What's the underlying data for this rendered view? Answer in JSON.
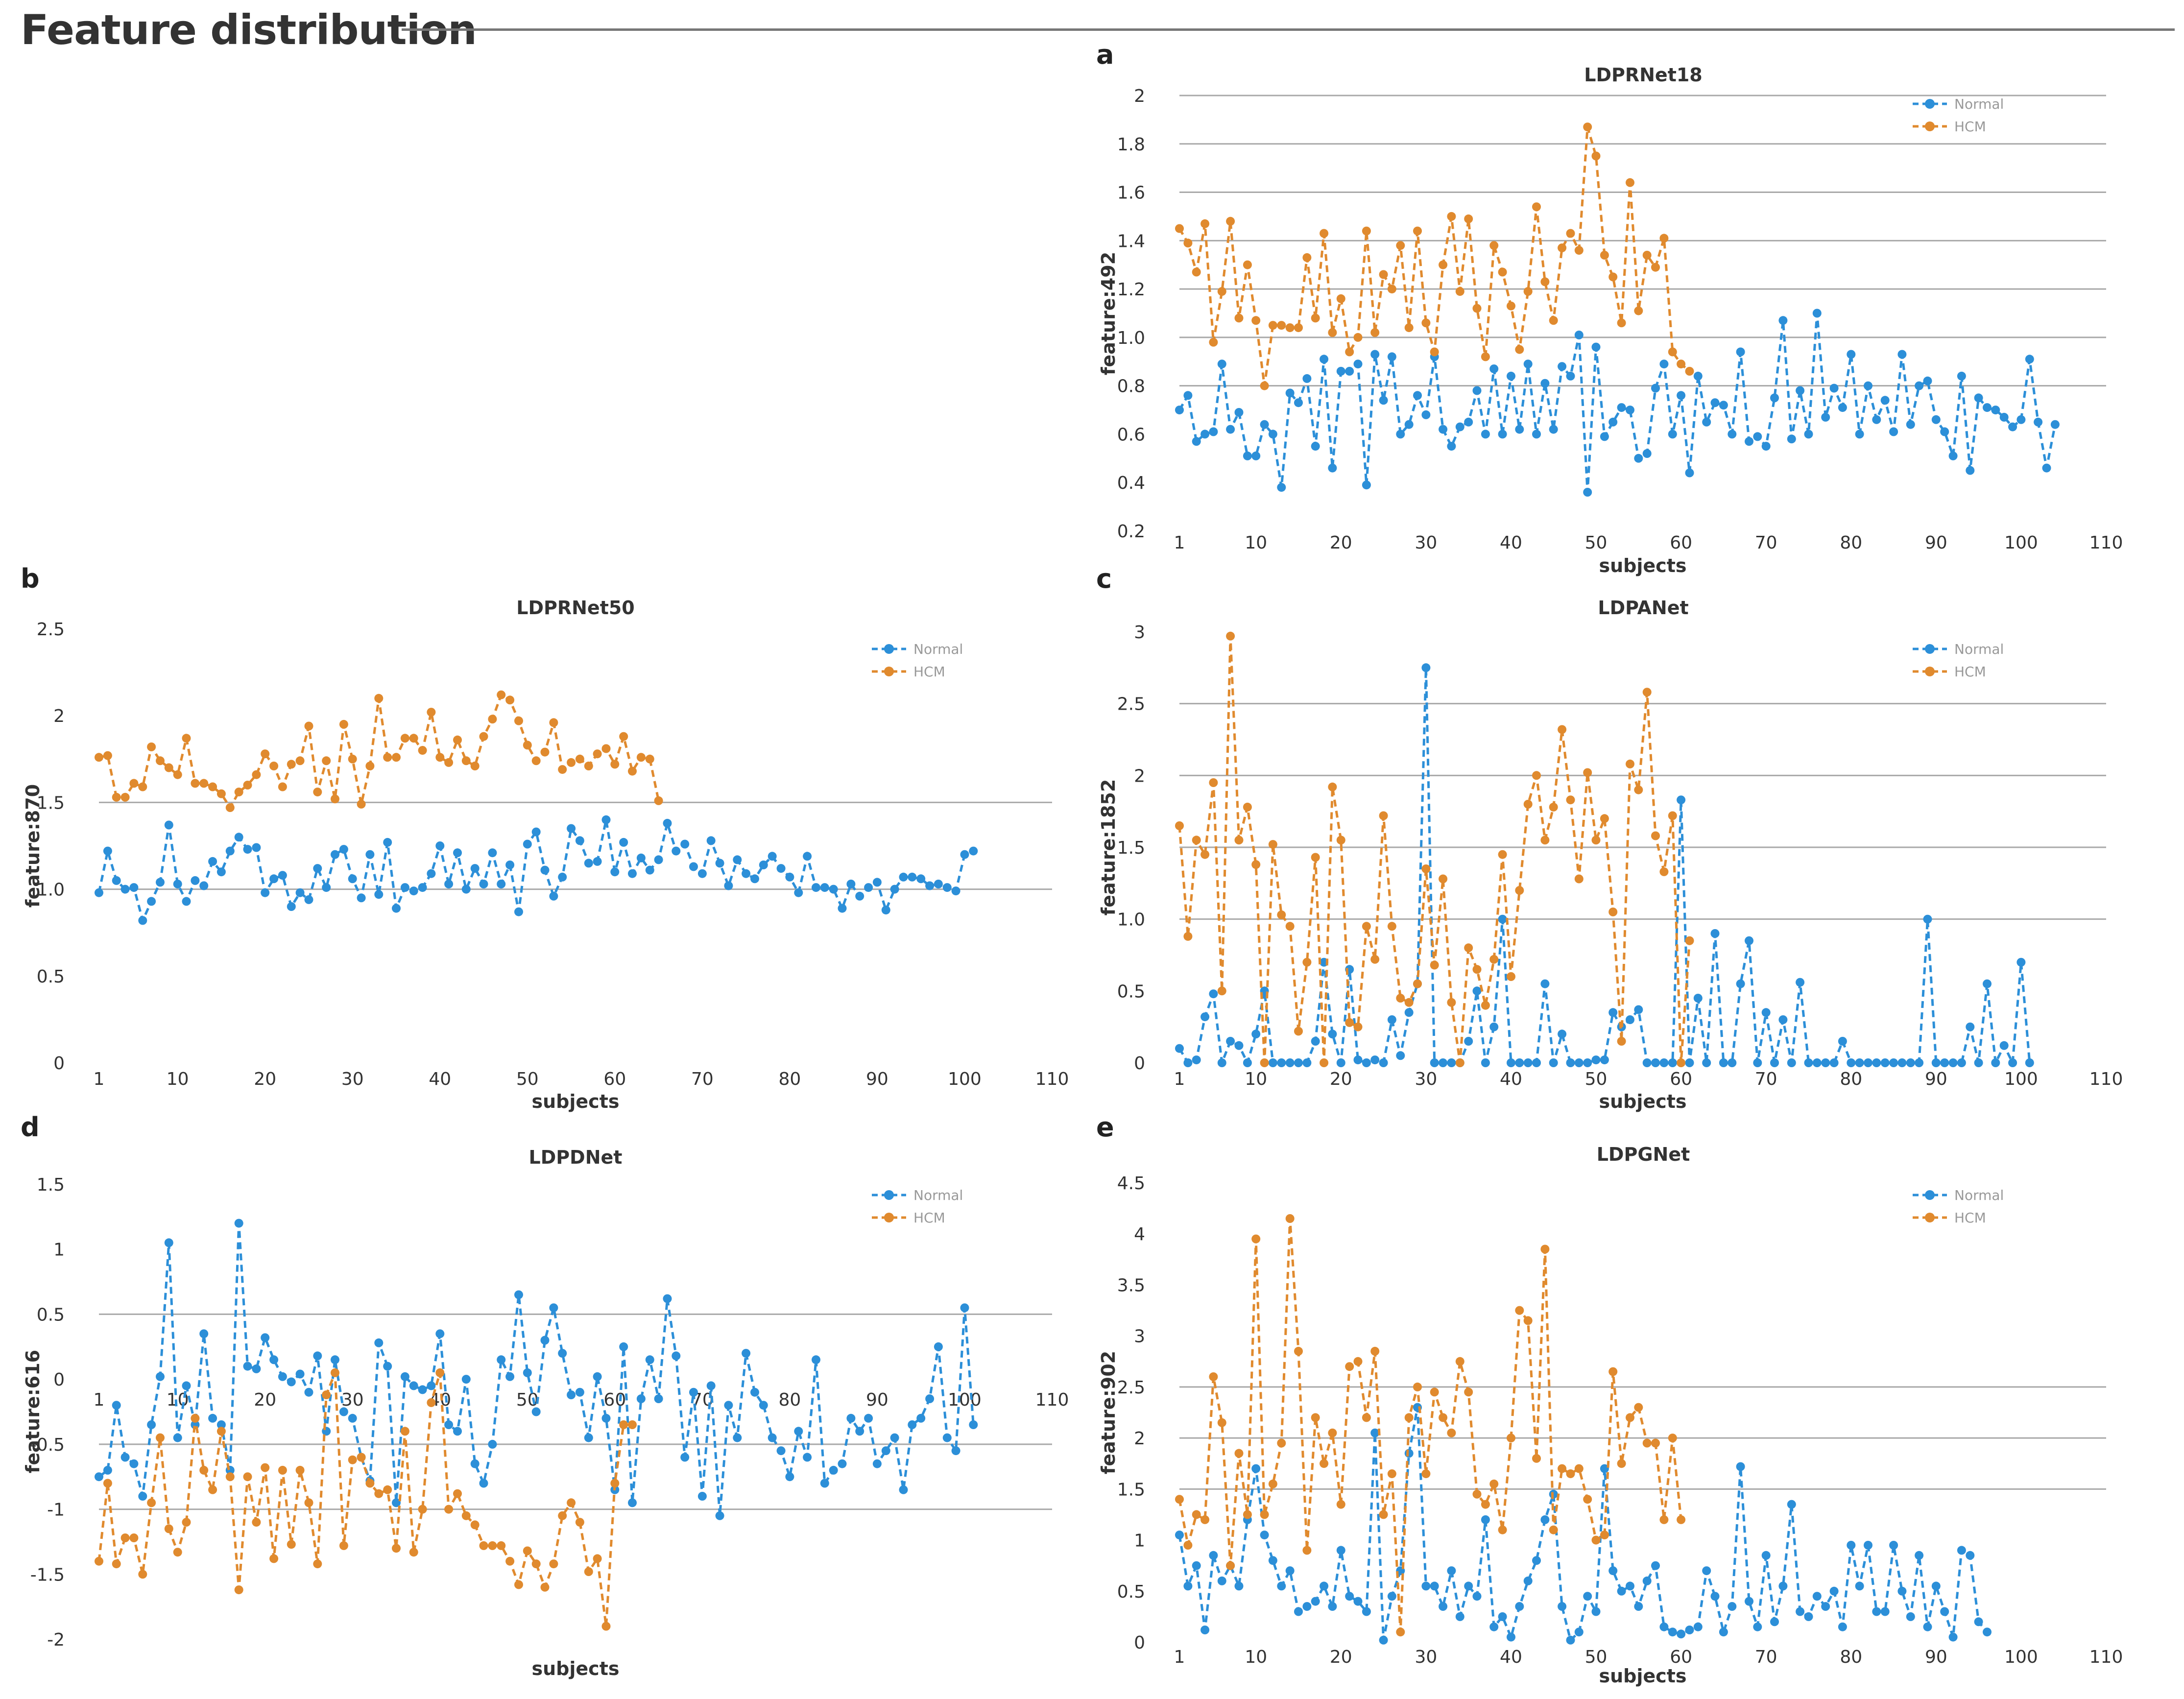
{
  "page": {
    "title": "Feature distribution"
  },
  "chart_data": [
    {
      "panel": "a",
      "type": "line",
      "title": "LDPRNet18",
      "xlabel": "subjects",
      "ylabel": "feature:492",
      "xticks": [
        "1",
        "10",
        "20",
        "30",
        "40",
        "50",
        "60",
        "70",
        "80",
        "90",
        "100",
        "110"
      ],
      "xlim": [
        1,
        110
      ],
      "yticks": [
        "0.2",
        "0.4",
        "0.6",
        "0.8",
        "1.0",
        "1.2",
        "1.4",
        "1.6",
        "1.8",
        "2"
      ],
      "ylim": [
        0.2,
        2
      ],
      "gridlines_at": [
        0.8,
        1.0,
        1.2,
        1.4,
        1.6,
        1.8,
        2
      ],
      "legend": "top-right",
      "colors": {
        "Normal": "#2c8fd8",
        "HCM": "#e08a2e"
      },
      "series": [
        {
          "name": "Normal",
          "values": [
            0.7,
            0.76,
            0.57,
            0.6,
            0.61,
            0.89,
            0.62,
            0.69,
            0.51,
            0.51,
            0.64,
            0.6,
            0.38,
            0.77,
            0.73,
            0.83,
            0.55,
            0.91,
            0.46,
            0.86,
            0.86,
            0.89,
            0.39,
            0.93,
            0.74,
            0.92,
            0.6,
            0.64,
            0.76,
            0.68,
            0.92,
            0.62,
            0.55,
            0.63,
            0.65,
            0.78,
            0.6,
            0.87,
            0.6,
            0.84,
            0.62,
            0.89,
            0.6,
            0.81,
            0.62,
            0.88,
            0.84,
            1.01,
            0.36,
            0.96,
            0.59,
            0.65,
            0.71,
            0.7,
            0.5,
            0.52,
            0.79,
            0.89,
            0.6,
            0.76,
            0.44,
            0.84,
            0.65,
            0.73,
            0.72,
            0.6,
            0.94,
            0.57,
            0.59,
            0.55,
            0.75,
            1.07,
            0.58,
            0.78,
            0.6,
            1.1,
            0.67,
            0.79,
            0.71,
            0.93,
            0.6,
            0.8,
            0.66,
            0.74,
            0.61,
            0.93,
            0.64,
            0.8,
            0.82,
            0.66,
            0.61,
            0.51,
            0.84,
            0.45,
            0.75,
            0.71,
            0.7,
            0.67,
            0.63,
            0.66,
            0.91,
            0.65,
            0.46,
            0.64
          ]
        },
        {
          "name": "HCM",
          "values": [
            1.45,
            1.39,
            1.27,
            1.47,
            0.98,
            1.19,
            1.48,
            1.08,
            1.3,
            1.07,
            0.8,
            1.05,
            1.05,
            1.04,
            1.04,
            1.33,
            1.08,
            1.43,
            1.02,
            1.16,
            0.94,
            1.0,
            1.44,
            1.02,
            1.26,
            1.2,
            1.38,
            1.04,
            1.44,
            1.06,
            0.94,
            1.3,
            1.5,
            1.19,
            1.49,
            1.12,
            0.92,
            1.38,
            1.27,
            1.13,
            0.95,
            1.19,
            1.54,
            1.23,
            1.07,
            1.37,
            1.43,
            1.36,
            1.87,
            1.75,
            1.34,
            1.25,
            1.06,
            1.64,
            1.11,
            1.34,
            1.29,
            1.41,
            0.94,
            0.89,
            0.86
          ]
        }
      ]
    },
    {
      "panel": "b",
      "type": "line",
      "title": "LDPRNet50",
      "xlabel": "subjects",
      "ylabel": "feature:870",
      "xticks": [
        "1",
        "10",
        "20",
        "30",
        "40",
        "50",
        "60",
        "70",
        "80",
        "90",
        "100",
        "110"
      ],
      "xlim": [
        1,
        110
      ],
      "yticks": [
        "0",
        "0.5",
        "1.0",
        "1.5",
        "2",
        "2.5"
      ],
      "ylim": [
        0,
        2.5
      ],
      "gridlines_at": [
        1.0,
        1.5
      ],
      "legend": "top-right",
      "colors": {
        "Normal": "#2c8fd8",
        "HCM": "#e08a2e"
      },
      "series": [
        {
          "name": "Normal",
          "values": [
            0.98,
            1.22,
            1.05,
            1.0,
            1.01,
            0.82,
            0.93,
            1.04,
            1.37,
            1.03,
            0.93,
            1.05,
            1.02,
            1.16,
            1.1,
            1.22,
            1.3,
            1.23,
            1.24,
            0.98,
            1.06,
            1.08,
            0.9,
            0.98,
            0.94,
            1.12,
            1.01,
            1.2,
            1.23,
            1.06,
            0.95,
            1.2,
            0.97,
            1.27,
            0.89,
            1.01,
            0.99,
            1.01,
            1.09,
            1.25,
            1.03,
            1.21,
            1.0,
            1.12,
            1.03,
            1.21,
            1.03,
            1.14,
            0.87,
            1.26,
            1.33,
            1.11,
            0.96,
            1.07,
            1.35,
            1.28,
            1.15,
            1.16,
            1.4,
            1.1,
            1.27,
            1.09,
            1.18,
            1.11,
            1.17,
            1.38,
            1.22,
            1.26,
            1.13,
            1.09,
            1.28,
            1.15,
            1.02,
            1.17,
            1.09,
            1.06,
            1.14,
            1.19,
            1.12,
            1.07,
            0.98,
            1.19,
            1.01,
            1.01,
            1.0,
            0.89,
            1.03,
            0.96,
            1.01,
            1.04,
            0.88,
            1.0,
            1.07,
            1.07,
            1.06,
            1.02,
            1.03,
            1.01,
            0.99,
            1.2,
            1.22
          ]
        },
        {
          "name": "HCM",
          "values": [
            1.76,
            1.77,
            1.53,
            1.53,
            1.61,
            1.59,
            1.82,
            1.74,
            1.7,
            1.66,
            1.87,
            1.61,
            1.61,
            1.59,
            1.55,
            1.47,
            1.56,
            1.6,
            1.66,
            1.78,
            1.71,
            1.59,
            1.72,
            1.74,
            1.94,
            1.56,
            1.74,
            1.52,
            1.95,
            1.75,
            1.49,
            1.71,
            2.1,
            1.76,
            1.76,
            1.87,
            1.87,
            1.8,
            2.02,
            1.76,
            1.73,
            1.86,
            1.74,
            1.71,
            1.88,
            1.98,
            2.12,
            2.09,
            1.97,
            1.83,
            1.74,
            1.79,
            1.96,
            1.69,
            1.73,
            1.75,
            1.71,
            1.78,
            1.81,
            1.72,
            1.88,
            1.68,
            1.76,
            1.75,
            1.51
          ]
        }
      ]
    },
    {
      "panel": "c",
      "type": "line",
      "title": "LDPANet",
      "xlabel": "subjects",
      "ylabel": "feature:1852",
      "xticks": [
        "1",
        "10",
        "20",
        "30",
        "40",
        "50",
        "60",
        "70",
        "80",
        "90",
        "100",
        "110"
      ],
      "xlim": [
        1,
        110
      ],
      "yticks": [
        "0",
        "0.5",
        "1.0",
        "1.5",
        "2",
        "2.5",
        "3"
      ],
      "ylim": [
        0,
        3
      ],
      "gridlines_at": [
        1.0,
        1.5,
        2,
        2.5
      ],
      "legend": "top-right",
      "colors": {
        "Normal": "#2c8fd8",
        "HCM": "#e08a2e"
      },
      "series": [
        {
          "name": "Normal",
          "values": [
            0.1,
            0,
            0.02,
            0.32,
            0.48,
            0,
            0.15,
            0.12,
            0,
            0.2,
            0.5,
            0,
            0,
            0,
            0,
            0,
            0.15,
            0.7,
            0.2,
            0,
            0.65,
            0.02,
            0,
            0.02,
            0,
            0.3,
            0.05,
            0.35,
            0.55,
            2.75,
            0,
            0,
            0,
            0,
            0.15,
            0.5,
            0,
            0.25,
            1.0,
            0,
            0,
            0,
            0,
            0.55,
            0,
            0.2,
            0,
            0,
            0,
            0.02,
            0.02,
            0.35,
            0.25,
            0.3,
            0.37,
            0,
            0,
            0,
            0,
            1.83,
            0,
            0.45,
            0,
            0.9,
            0,
            0,
            0.55,
            0.85,
            0,
            0.35,
            0,
            0.3,
            0,
            0.56,
            0,
            0,
            0,
            0,
            0.15,
            0,
            0,
            0,
            0,
            0,
            0,
            0,
            0,
            0,
            1.0,
            0,
            0,
            0,
            0,
            0.25,
            0,
            0.55,
            0,
            0.12,
            0,
            0.7,
            0
          ]
        },
        {
          "name": "HCM",
          "values": [
            1.65,
            0.88,
            1.55,
            1.45,
            1.95,
            0.5,
            2.97,
            1.55,
            1.78,
            1.38,
            0,
            1.52,
            1.03,
            0.95,
            0.22,
            0.7,
            1.43,
            0,
            1.92,
            1.55,
            0.28,
            0.25,
            0.95,
            0.72,
            1.72,
            0.95,
            0.45,
            0.42,
            0.55,
            1.35,
            0.68,
            1.28,
            0.42,
            0,
            0.8,
            0.65,
            0.4,
            0.72,
            1.45,
            0.6,
            1.2,
            1.8,
            2.0,
            1.55,
            1.78,
            2.32,
            1.83,
            1.28,
            2.02,
            1.55,
            1.7,
            1.05,
            0.15,
            2.08,
            1.9,
            2.58,
            1.58,
            1.33,
            1.72,
            0,
            0.85
          ]
        }
      ]
    },
    {
      "panel": "d",
      "type": "line",
      "title": "LDPDNet",
      "xlabel": "subjects",
      "ylabel": "feature:616",
      "xticks": [
        "1",
        "10",
        "20",
        "30",
        "40",
        "50",
        "60",
        "70",
        "80",
        "90",
        "100",
        "110"
      ],
      "xlim": [
        1,
        110
      ],
      "yticks": [
        "-2",
        "-1.5",
        "-1",
        "-0.5",
        "0",
        "0.5",
        "1",
        "1.5"
      ],
      "ylim": [
        -2,
        1.5
      ],
      "gridlines_at": [
        -1,
        -0.5,
        0.5
      ],
      "legend": "top-right",
      "colors": {
        "Normal": "#2c8fd8",
        "HCM": "#e08a2e"
      },
      "series": [
        {
          "name": "Normal",
          "values": [
            -0.75,
            -0.7,
            -0.2,
            -0.6,
            -0.65,
            -0.9,
            -0.35,
            0.02,
            1.05,
            -0.45,
            -0.05,
            -0.35,
            0.35,
            -0.3,
            -0.35,
            -0.7,
            1.2,
            0.1,
            0.08,
            0.32,
            0.15,
            0.02,
            -0.02,
            0.04,
            -0.1,
            0.18,
            -0.4,
            0.15,
            -0.25,
            -0.3,
            -0.6,
            -0.78,
            0.28,
            0.1,
            -0.95,
            0.02,
            -0.05,
            -0.08,
            -0.05,
            0.35,
            -0.35,
            -0.4,
            0,
            -0.65,
            -0.8,
            -0.5,
            0.15,
            0.02,
            0.65,
            0.05,
            -0.25,
            0.3,
            0.55,
            0.2,
            -0.12,
            -0.1,
            -0.45,
            0.02,
            -0.3,
            -0.85,
            0.25,
            -0.95,
            -0.15,
            0.15,
            -0.15,
            0.62,
            0.18,
            -0.6,
            -0.1,
            -0.9,
            -0.05,
            -1.05,
            -0.2,
            -0.45,
            0.2,
            -0.1,
            -0.2,
            -0.45,
            -0.55,
            -0.75,
            -0.4,
            -0.6,
            0.15,
            -0.8,
            -0.7,
            -0.65,
            -0.3,
            -0.4,
            -0.3,
            -0.65,
            -0.55,
            -0.45,
            -0.85,
            -0.35,
            -0.3,
            -0.15,
            0.25,
            -0.45,
            -0.55,
            0.55,
            -0.35
          ]
        },
        {
          "name": "HCM",
          "values": [
            -1.4,
            -0.8,
            -1.42,
            -1.22,
            -1.22,
            -1.5,
            -0.95,
            -0.45,
            -1.15,
            -1.33,
            -1.1,
            -0.3,
            -0.7,
            -0.85,
            -0.4,
            -0.75,
            -1.62,
            -0.75,
            -1.1,
            -0.68,
            -1.38,
            -0.7,
            -1.27,
            -0.7,
            -0.95,
            -1.42,
            -0.12,
            0.05,
            -1.28,
            -0.62,
            -0.6,
            -0.8,
            -0.88,
            -0.85,
            -1.3,
            -0.4,
            -1.33,
            -1.0,
            -0.18,
            0.05,
            -1.0,
            -0.88,
            -1.05,
            -1.12,
            -1.28,
            -1.28,
            -1.28,
            -1.4,
            -1.58,
            -1.32,
            -1.42,
            -1.6,
            -1.42,
            -1.05,
            -0.95,
            -1.1,
            -1.48,
            -1.38,
            -1.9,
            -0.8,
            -0.35,
            -0.35
          ]
        }
      ]
    },
    {
      "panel": "e",
      "type": "line",
      "title": "LDPGNet",
      "xlabel": "subjects",
      "ylabel": "feature:902",
      "xticks": [
        "1",
        "10",
        "20",
        "30",
        "40",
        "50",
        "60",
        "70",
        "80",
        "90",
        "100",
        "110"
      ],
      "xlim": [
        1,
        110
      ],
      "yticks": [
        "0",
        "0.5",
        "1",
        "1.5",
        "2",
        "2.5",
        "3",
        "3.5",
        "4",
        "4.5"
      ],
      "ylim": [
        0,
        4.5
      ],
      "gridlines_at": [
        1.5,
        2,
        2.5
      ],
      "legend": "top-right",
      "colors": {
        "Normal": "#2c8fd8",
        "HCM": "#e08a2e"
      },
      "series": [
        {
          "name": "Normal",
          "values": [
            1.05,
            0.55,
            0.75,
            0.12,
            0.85,
            0.6,
            0.75,
            0.55,
            1.2,
            1.7,
            1.05,
            0.8,
            0.55,
            0.7,
            0.3,
            0.35,
            0.4,
            0.55,
            0.35,
            0.9,
            0.45,
            0.4,
            0.3,
            2.05,
            0.02,
            0.45,
            0.7,
            1.85,
            2.3,
            0.55,
            0.55,
            0.35,
            0.7,
            0.25,
            0.55,
            0.45,
            1.2,
            0.15,
            0.25,
            0.05,
            0.35,
            0.6,
            0.8,
            1.2,
            1.45,
            0.35,
            0.02,
            0.1,
            0.45,
            0.3,
            1.7,
            0.7,
            0.5,
            0.55,
            0.35,
            0.6,
            0.75,
            0.15,
            0.1,
            0.08,
            0.12,
            0.15,
            0.7,
            0.45,
            0.1,
            0.35,
            1.72,
            0.4,
            0.15,
            0.85,
            0.2,
            0.55,
            1.35,
            0.3,
            0.25,
            0.45,
            0.35,
            0.5,
            0.15,
            0.95,
            0.55,
            0.95,
            0.3,
            0.3,
            0.95,
            0.5,
            0.25,
            0.85,
            0.15,
            0.55,
            0.3,
            0.05,
            0.9,
            0.85,
            0.2,
            0.1
          ]
        },
        {
          "name": "HCM",
          "values": [
            1.4,
            0.95,
            1.25,
            1.2,
            2.6,
            2.15,
            0.75,
            1.85,
            1.25,
            3.95,
            1.25,
            1.55,
            1.95,
            4.15,
            2.85,
            0.9,
            2.2,
            1.75,
            2.05,
            1.35,
            2.7,
            2.75,
            2.2,
            2.85,
            1.25,
            1.65,
            0.1,
            2.2,
            2.5,
            1.65,
            2.45,
            2.2,
            2.05,
            2.75,
            2.45,
            1.45,
            1.35,
            1.55,
            1.1,
            2.0,
            3.25,
            3.15,
            1.8,
            3.85,
            1.1,
            1.7,
            1.65,
            1.7,
            1.4,
            1.0,
            1.05,
            2.65,
            1.75,
            2.2,
            2.3,
            1.95,
            1.95,
            1.2,
            2.0,
            1.2
          ]
        }
      ]
    }
  ]
}
